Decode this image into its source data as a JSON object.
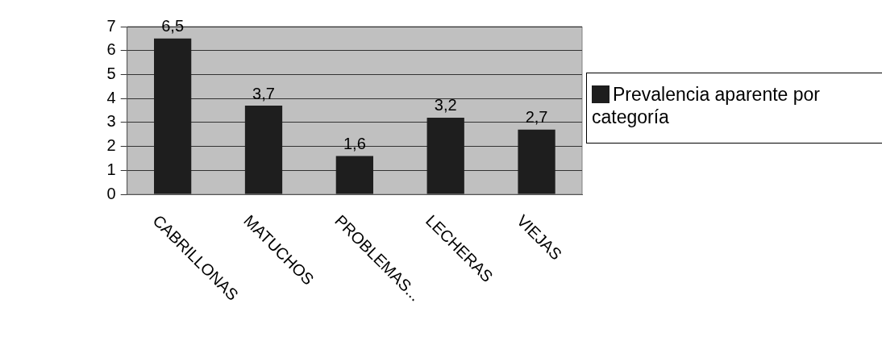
{
  "chart_data": {
    "type": "bar",
    "categories": [
      "CABRILLONAS",
      "MATUCHOS",
      "PROBLEMAS...",
      "LECHERAS",
      "VIEJAS"
    ],
    "series": [
      {
        "name": "Prevalencia aparente por categoría",
        "color": "#1e1e1e",
        "values": [
          6.5,
          3.7,
          1.6,
          3.2,
          2.7
        ],
        "value_labels": [
          "6,5",
          "3,7",
          "1,6",
          "3,2",
          "2,7"
        ]
      }
    ],
    "ylim": [
      0,
      7
    ],
    "yticks": [
      0,
      1,
      2,
      3,
      4,
      5,
      6,
      7
    ],
    "grid": "y",
    "legend": "right"
  }
}
